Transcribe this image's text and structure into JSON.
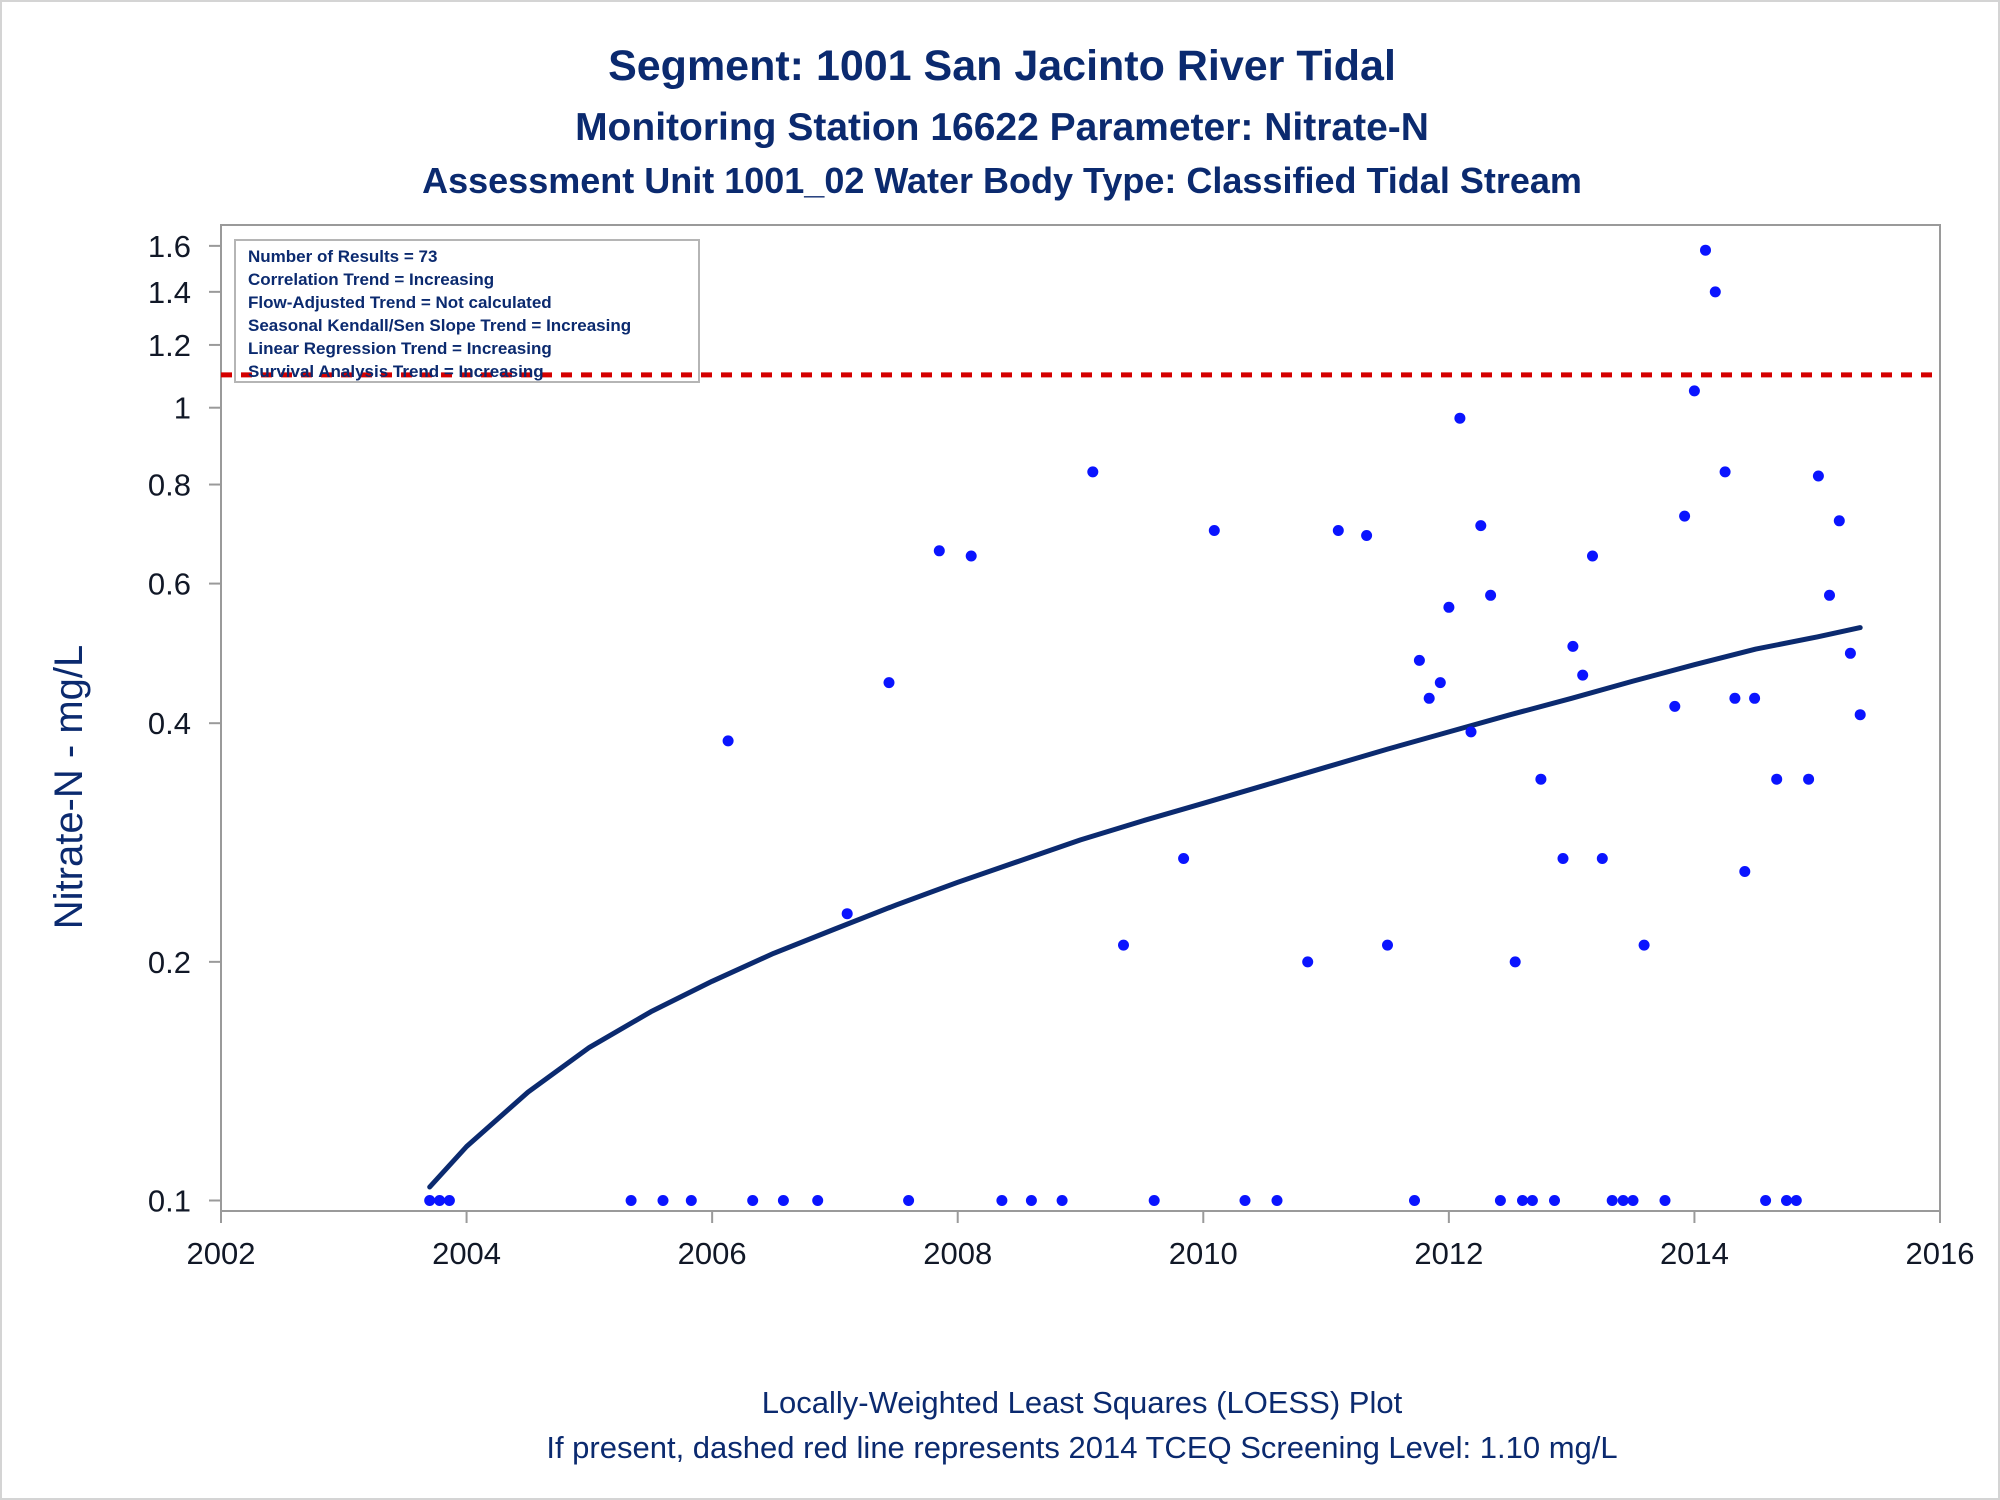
{
  "titles": {
    "line1": "Segment: 1001  San Jacinto River Tidal",
    "line2": "Monitoring Station 16622 Parameter: Nitrate-N",
    "line3": "Assessment Unit 1001_02   Water Body Type: Classified Tidal Stream"
  },
  "stats_box": [
    "Number of Results = 73",
    "Correlation Trend = Increasing",
    "Flow-Adjusted Trend = Not calculated",
    "Seasonal Kendall/Sen Slope Trend = Increasing",
    "Linear Regression Trend = Increasing",
    "Survival Analysis Trend = Increasing"
  ],
  "footnotes": {
    "line1": "Locally-Weighted Least Squares (LOESS) Plot",
    "line2": "If present, dashed red line represents 2014 TCEQ Screening Level: 1.10 mg/L"
  },
  "colors": {
    "title": "#0b2a6f",
    "points": "#0a14ff",
    "loess": "#0b2a6f",
    "screening_line": "#d40000",
    "frame": "#9a9a9a"
  },
  "chart_data": {
    "type": "scatter",
    "title": "Segment: 1001  San Jacinto River Tidal",
    "xlabel": "",
    "ylabel": "Nitrate-N - mg/L",
    "xlim": [
      2002,
      2016
    ],
    "ylim": [
      0.097,
      1.7
    ],
    "yscale": "log",
    "xticks": [
      2002,
      2004,
      2006,
      2008,
      2010,
      2012,
      2014,
      2016
    ],
    "yticks": [
      0.1,
      0.2,
      0.4,
      0.6,
      0.8,
      1,
      1.2,
      1.4,
      1.6
    ],
    "ytick_labels": [
      "0.1",
      "0.2",
      "0.4",
      "0.6",
      "0.8",
      "1",
      "1.2",
      "1.4",
      "1.6"
    ],
    "grid": false,
    "reference_line": {
      "y": 1.1,
      "style": "dashed",
      "color": "#d40000"
    },
    "points": [
      [
        2003.7,
        0.1
      ],
      [
        2003.78,
        0.1
      ],
      [
        2003.86,
        0.1
      ],
      [
        2005.34,
        0.1
      ],
      [
        2005.6,
        0.1
      ],
      [
        2005.83,
        0.1
      ],
      [
        2006.13,
        0.38
      ],
      [
        2006.33,
        0.1
      ],
      [
        2006.58,
        0.1
      ],
      [
        2006.86,
        0.1
      ],
      [
        2007.1,
        0.23
      ],
      [
        2007.44,
        0.45
      ],
      [
        2007.6,
        0.1
      ],
      [
        2007.85,
        0.66
      ],
      [
        2008.11,
        0.65
      ],
      [
        2008.36,
        0.1
      ],
      [
        2008.6,
        0.1
      ],
      [
        2008.85,
        0.1
      ],
      [
        2009.1,
        0.83
      ],
      [
        2009.35,
        0.21
      ],
      [
        2009.6,
        0.1
      ],
      [
        2009.84,
        0.27
      ],
      [
        2010.09,
        0.7
      ],
      [
        2010.34,
        0.1
      ],
      [
        2010.6,
        0.1
      ],
      [
        2010.85,
        0.2
      ],
      [
        2011.1,
        0.7
      ],
      [
        2011.33,
        0.69
      ],
      [
        2011.5,
        0.21
      ],
      [
        2011.72,
        0.1
      ],
      [
        2011.76,
        0.48
      ],
      [
        2011.84,
        0.43
      ],
      [
        2011.93,
        0.45
      ],
      [
        2012.0,
        0.56
      ],
      [
        2012.09,
        0.97
      ],
      [
        2012.18,
        0.39
      ],
      [
        2012.26,
        0.71
      ],
      [
        2012.34,
        0.58
      ],
      [
        2012.42,
        0.1
      ],
      [
        2012.54,
        0.2
      ],
      [
        2012.6,
        0.1
      ],
      [
        2012.68,
        0.1
      ],
      [
        2012.75,
        0.34
      ],
      [
        2012.86,
        0.1
      ],
      [
        2012.93,
        0.27
      ],
      [
        2013.01,
        0.5
      ],
      [
        2013.09,
        0.46
      ],
      [
        2013.17,
        0.65
      ],
      [
        2013.25,
        0.27
      ],
      [
        2013.33,
        0.1
      ],
      [
        2013.42,
        0.1
      ],
      [
        2013.5,
        0.1
      ],
      [
        2013.59,
        0.21
      ],
      [
        2013.76,
        0.1
      ],
      [
        2013.84,
        0.42
      ],
      [
        2013.92,
        0.73
      ],
      [
        2014.0,
        1.05
      ],
      [
        2014.09,
        1.58
      ],
      [
        2014.17,
        1.4
      ],
      [
        2014.25,
        0.83
      ],
      [
        2014.33,
        0.43
      ],
      [
        2014.41,
        0.26
      ],
      [
        2014.49,
        0.43
      ],
      [
        2014.58,
        0.1
      ],
      [
        2014.67,
        0.34
      ],
      [
        2014.75,
        0.1
      ],
      [
        2014.83,
        0.1
      ],
      [
        2014.93,
        0.34
      ],
      [
        2015.01,
        0.82
      ],
      [
        2015.1,
        0.58
      ],
      [
        2015.18,
        0.72
      ],
      [
        2015.27,
        0.49
      ],
      [
        2015.35,
        0.41
      ]
    ],
    "loess": [
      [
        2003.7,
        0.104
      ],
      [
        2004.0,
        0.117
      ],
      [
        2004.5,
        0.137
      ],
      [
        2005.0,
        0.156
      ],
      [
        2005.5,
        0.173
      ],
      [
        2006.0,
        0.189
      ],
      [
        2006.5,
        0.205
      ],
      [
        2007.0,
        0.22
      ],
      [
        2007.5,
        0.236
      ],
      [
        2008.0,
        0.252
      ],
      [
        2008.5,
        0.268
      ],
      [
        2009.0,
        0.285
      ],
      [
        2009.5,
        0.301
      ],
      [
        2010.0,
        0.317
      ],
      [
        2010.5,
        0.334
      ],
      [
        2011.0,
        0.352
      ],
      [
        2011.5,
        0.371
      ],
      [
        2012.0,
        0.39
      ],
      [
        2012.5,
        0.41
      ],
      [
        2013.0,
        0.43
      ],
      [
        2013.5,
        0.452
      ],
      [
        2014.0,
        0.474
      ],
      [
        2014.5,
        0.496
      ],
      [
        2015.0,
        0.514
      ],
      [
        2015.35,
        0.528
      ]
    ]
  }
}
